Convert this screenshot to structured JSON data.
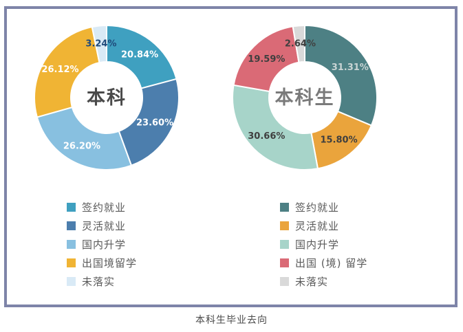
{
  "caption": "本科生毕业去向",
  "frame_border_color": "#7e84a8",
  "chart_data": [
    {
      "type": "pie",
      "subtype": "donut",
      "title": "",
      "center_label": "本科",
      "center_label_color": "#4a4a4a",
      "legend_position": "bottom-left",
      "start_angle_deg": 0,
      "slices": [
        {
          "label": "签约就业",
          "value": 20.84,
          "value_label": "20.84%",
          "color": "#3fa0c0",
          "value_label_color": "#ffffff"
        },
        {
          "label": "灵活就业",
          "value": 23.6,
          "value_label": "23.60%",
          "color": "#4c7ead",
          "value_label_color": "#ffffff"
        },
        {
          "label": "国内升学",
          "value": 26.2,
          "value_label": "26.20%",
          "color": "#88c0e0",
          "value_label_color": "#ffffff"
        },
        {
          "label": "出国境留学",
          "value": 26.12,
          "value_label": "26.12%",
          "color": "#f0b434",
          "value_label_color": "#ffffff"
        },
        {
          "label": "未落实",
          "value": 3.24,
          "value_label": "3.24%",
          "color": "#d9eaf6",
          "value_label_color": "#1f4a7a"
        }
      ]
    },
    {
      "type": "pie",
      "subtype": "donut",
      "title": "",
      "center_label": "本科生",
      "center_label_color": "#7a7a7a",
      "legend_position": "bottom-left",
      "start_angle_deg": 0,
      "slices": [
        {
          "label": "签约就业",
          "value": 31.31,
          "value_label": "31.31%",
          "color": "#4d8084",
          "value_label_color": "#c9d4d4"
        },
        {
          "label": "灵活就业",
          "value": 15.8,
          "value_label": "15.80%",
          "color": "#eaa43c",
          "value_label_color": "#3f3f3f"
        },
        {
          "label": "国内升学",
          "value": 30.66,
          "value_label": "30.66%",
          "color": "#a7d4c9",
          "value_label_color": "#3f3f3f"
        },
        {
          "label": "出国 (境) 留学",
          "value": 19.59,
          "value_label": "19.59%",
          "color": "#da6a76",
          "value_label_color": "#3f3f3f"
        },
        {
          "label": "未落实",
          "value": 2.64,
          "value_label": "2.64%",
          "color": "#d9d9d9",
          "value_label_color": "#3f3f3f"
        }
      ]
    }
  ]
}
